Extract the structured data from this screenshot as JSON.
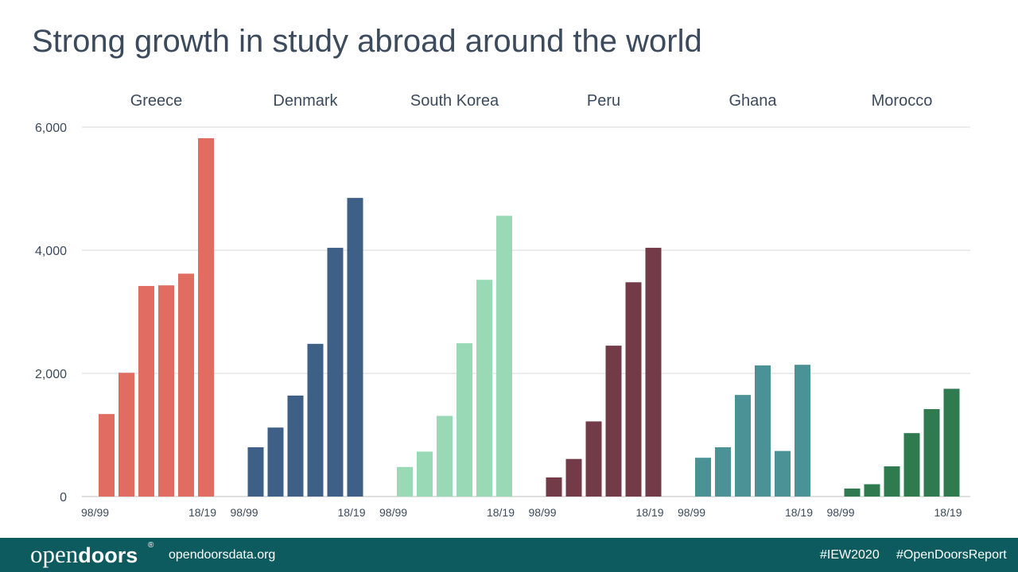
{
  "title": "Strong growth in study abroad around the world",
  "chart_data": {
    "type": "bar",
    "ylim": [
      0,
      6000
    ],
    "yticks": [
      "0",
      "2,000",
      "4,000",
      "6,000"
    ],
    "ytick_values": [
      0,
      2000,
      4000,
      6000
    ],
    "grid": true,
    "groups": [
      {
        "name": "Greece",
        "color": "#e06c62",
        "values": [
          1340,
          2010,
          3420,
          3430,
          3620,
          5820
        ],
        "first_label": "98/99",
        "last_label": "18/19"
      },
      {
        "name": "Denmark",
        "color": "#3e5f86",
        "values": [
          800,
          1120,
          1640,
          2480,
          4040,
          4850
        ],
        "first_label": "98/99",
        "last_label": "18/19"
      },
      {
        "name": "South Korea",
        "color": "#9ad9b6",
        "values": [
          480,
          730,
          1310,
          2490,
          3520,
          4560
        ],
        "first_label": "98/99",
        "last_label": "18/19"
      },
      {
        "name": "Peru",
        "color": "#733a48",
        "values": [
          310,
          610,
          1220,
          2450,
          3480,
          4040
        ],
        "first_label": "98/99",
        "last_label": "18/19"
      },
      {
        "name": "Ghana",
        "color": "#4b9296",
        "values": [
          630,
          800,
          1650,
          2130,
          740,
          2140
        ],
        "first_label": "98/99",
        "last_label": "18/19"
      },
      {
        "name": "Morocco",
        "color": "#2f7a4f",
        "values": [
          130,
          200,
          490,
          1030,
          1420,
          1750
        ],
        "first_label": "98/99",
        "last_label": "18/19"
      }
    ]
  },
  "footer": {
    "logo_light": "open",
    "logo_bold": "doors",
    "logo_mark": "®",
    "site": "opendoorsdata.org",
    "tag1": "#IEW2020",
    "tag2": "#OpenDoorsReport",
    "background": "#0e5b5f"
  }
}
